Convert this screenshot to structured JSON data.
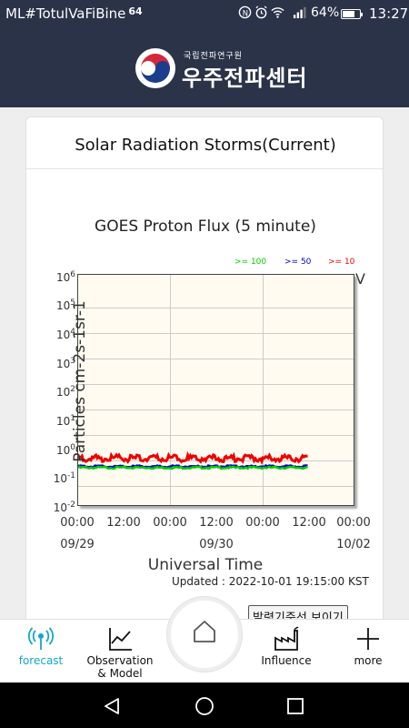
{
  "status_bar": {
    "carrier": "ML#TotulVaFiBine",
    "network": "64",
    "battery_pct": "64%",
    "battery_level": 0.64,
    "time": "13:27"
  },
  "header": {
    "org_subtitle": "국립전파연구원",
    "org_name": "우주전파센터"
  },
  "card": {
    "title": "Solar Radiation Storms(Current)",
    "chart_title": "GOES Proton Flux (5 minute)",
    "cut_off_letter": "V",
    "updated": "Updated : 2022-10-01 19:15:00 KST",
    "criteria_button": "발령기준선 보이기"
  },
  "chart_data": {
    "type": "line",
    "title": "GOES Proton Flux (5 minute)",
    "xlabel": "Universal Time",
    "ylabel": "Particles cm-2s-1sr-1",
    "yscale": "log",
    "ylim": [
      0.01,
      1000000
    ],
    "y_ticks": [
      {
        "base": "10",
        "exp": "6"
      },
      {
        "base": "10",
        "exp": "5"
      },
      {
        "base": "10",
        "exp": "4"
      },
      {
        "base": "10",
        "exp": "3"
      },
      {
        "base": "10",
        "exp": "2"
      },
      {
        "base": "10",
        "exp": "1"
      },
      {
        "base": "10",
        "exp": "0"
      },
      {
        "base": "10",
        "exp": "-1"
      },
      {
        "base": "10",
        "exp": "-2"
      }
    ],
    "x_ticks": [
      "00:00",
      "12:00",
      "00:00",
      "12:00",
      "00:00",
      "12:00",
      "00:00"
    ],
    "x_dates": [
      "09/29",
      "09/30",
      "10/02"
    ],
    "xlim_hours": [
      0,
      72
    ],
    "grid": true,
    "legend_position": "top-right",
    "series": [
      {
        "name": ">= 100",
        "color": "#00cc00",
        "start_hour": 0,
        "end_hour": 60,
        "value": 0.2
      },
      {
        "name": ">= 50",
        "color": "#0000cc",
        "start_hour": 0,
        "end_hour": 60,
        "value": 0.22
      },
      {
        "name": ">= 10",
        "color": "#ee0000",
        "start_hour": 0,
        "end_hour": 60,
        "value": 0.42
      }
    ]
  },
  "bottom_nav": {
    "items": [
      {
        "label": "forecast"
      },
      {
        "label": "Observation\n& Model"
      },
      {
        "label": "Influence"
      },
      {
        "label": "more"
      }
    ]
  },
  "colors": {
    "header_bg": "#2b3349",
    "accent": "#14a7c7"
  }
}
